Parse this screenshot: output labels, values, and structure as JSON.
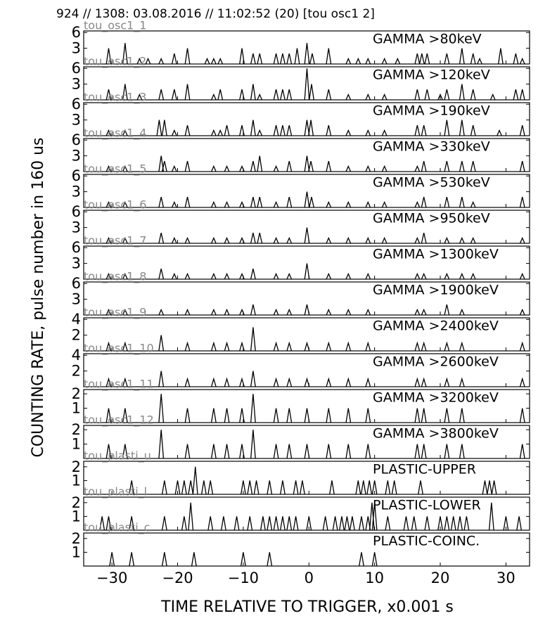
{
  "chart_data": {
    "type": "spike",
    "title": "924 // 1308:   03.08.2016 // 11:02:52 (20)  [tou osc1 2]",
    "x_label": "TIME RELATIVE TO TRIGGER,   x0.001 s",
    "y_label": "COUNTING RATE,   pulse number in 160 us",
    "xlim": [
      -34.3,
      33.6
    ],
    "xticks": [
      {
        "value": -30,
        "label": "−30"
      },
      {
        "value": -20,
        "label": "−20"
      },
      {
        "value": -10,
        "label": "−10"
      },
      0,
      10,
      20,
      30
    ],
    "color": "#000000",
    "panels": [
      {
        "name": "tou_osc1_1",
        "label": "GAMMA >80keV",
        "ylim": [
          0,
          6.3
        ],
        "yticks": [
          3,
          6
        ],
        "x": [
          -30.5,
          -28,
          -25.8,
          -24.5,
          -22.5,
          -20.5,
          -18.5,
          -15.5,
          -14.5,
          -13.5,
          -10.2,
          -8.5,
          -7.5,
          -5,
          -4,
          -3,
          -1.8,
          -0.3,
          0.5,
          3,
          6,
          7.5,
          9,
          11.5,
          13.5,
          16.5,
          17.2,
          18,
          21,
          23.3,
          25,
          26,
          29.2,
          31.5,
          32.5
        ],
        "values": [
          3,
          4,
          1,
          1,
          1,
          2,
          3,
          1,
          1,
          1,
          3,
          2,
          2,
          2,
          2,
          2,
          3,
          4,
          2,
          3,
          1,
          1,
          1,
          1,
          1,
          2,
          2,
          2,
          2,
          3,
          2,
          1,
          3,
          2,
          1
        ]
      },
      {
        "name": "tou_osc1_2",
        "label": "GAMMA >120keV",
        "ylim": [
          0,
          6.3
        ],
        "yticks": [
          3,
          6
        ],
        "x": [
          -30.5,
          -28,
          -25.8,
          -22.5,
          -20.5,
          -18.5,
          -14.5,
          -13.5,
          -10.2,
          -8.5,
          -7.5,
          -5,
          -4,
          -3,
          -0.3,
          0.4,
          3,
          6,
          9,
          11.5,
          16.5,
          18,
          20,
          21,
          23.3,
          25,
          28,
          31.5,
          32.5
        ],
        "values": [
          2,
          3,
          1,
          2,
          2,
          3,
          1,
          2,
          2,
          3,
          1,
          2,
          2,
          2,
          6,
          3,
          2,
          1,
          1,
          1,
          2,
          2,
          1,
          2,
          3,
          2,
          1,
          2,
          2
        ]
      },
      {
        "name": "tou_osc1_3",
        "label": "GAMMA >190keV",
        "ylim": [
          0,
          6.3
        ],
        "yticks": [
          3,
          6
        ],
        "x": [
          -30.5,
          -28,
          -22.8,
          -22,
          -20.5,
          -18.5,
          -14.5,
          -13.5,
          -12.5,
          -10.2,
          -8.5,
          -7.5,
          -5,
          -4,
          -3,
          -0.3,
          0.3,
          3,
          6,
          9,
          11.5,
          16.5,
          17.5,
          21,
          23.3,
          25,
          29,
          32.5
        ],
        "values": [
          1,
          1,
          3,
          3,
          1,
          2,
          1,
          1,
          2,
          2,
          3,
          1,
          2,
          2,
          2,
          3,
          3,
          2,
          1,
          1,
          1,
          2,
          2,
          3,
          3,
          2,
          1,
          2
        ]
      },
      {
        "name": "tou_osc1_4",
        "label": "GAMMA >330keV",
        "ylim": [
          0,
          6.3
        ],
        "yticks": [
          3,
          6
        ],
        "x": [
          -30.5,
          -28,
          -22.5,
          -22,
          -20.5,
          -18.5,
          -14.5,
          -12.5,
          -10.2,
          -8.5,
          -7.5,
          -5,
          -3,
          -0.3,
          0.3,
          3,
          6,
          9,
          11.5,
          16.5,
          17.5,
          21,
          23.3,
          25,
          32.5
        ],
        "values": [
          1,
          1,
          3,
          2,
          1,
          2,
          1,
          1,
          1,
          2,
          3,
          1,
          2,
          3,
          2,
          2,
          1,
          1,
          1,
          1,
          2,
          2,
          2,
          2,
          2
        ]
      },
      {
        "name": "tou_osc1_5",
        "label": "GAMMA >530keV",
        "ylim": [
          0,
          6.3
        ],
        "yticks": [
          3,
          6
        ],
        "x": [
          -30.5,
          -28,
          -22.5,
          -20.5,
          -18.5,
          -14.5,
          -12.5,
          -10.2,
          -8.5,
          -7.5,
          -5,
          -3,
          -0.3,
          0.4,
          3,
          6,
          9,
          11.5,
          16.5,
          17.5,
          21,
          23.3,
          25,
          32.5
        ],
        "values": [
          1,
          1,
          2,
          1,
          2,
          1,
          1,
          1,
          2,
          2,
          1,
          2,
          3,
          2,
          1,
          1,
          1,
          1,
          1,
          2,
          2,
          2,
          1,
          2
        ]
      },
      {
        "name": "tou_osc1_6",
        "label": "GAMMA >950keV",
        "ylim": [
          0,
          6.3
        ],
        "yticks": [
          3,
          6
        ],
        "x": [
          -30.5,
          -28,
          -22.5,
          -20.5,
          -18.5,
          -14.5,
          -12.5,
          -10.2,
          -8.5,
          -7.5,
          -5,
          -3,
          -0.3,
          3,
          6,
          9,
          11.5,
          16.5,
          17.5,
          21,
          23.3,
          25,
          32.5
        ],
        "values": [
          1,
          1,
          2,
          1,
          1,
          1,
          1,
          1,
          2,
          2,
          1,
          1,
          3,
          1,
          1,
          1,
          1,
          1,
          2,
          1,
          1,
          1,
          1
        ]
      },
      {
        "name": "tou_osc1_7",
        "label": "GAMMA >1300keV",
        "ylim": [
          0,
          6.3
        ],
        "yticks": [
          3,
          6
        ],
        "x": [
          -30.5,
          -28,
          -22.5,
          -20.5,
          -18.5,
          -14.5,
          -12.5,
          -10.2,
          -8.5,
          -5,
          -3,
          -0.3,
          3,
          6,
          9,
          16.5,
          17.5,
          21,
          23.3,
          25,
          32.5
        ],
        "values": [
          1,
          1,
          2,
          1,
          1,
          1,
          1,
          1,
          2,
          1,
          1,
          3,
          1,
          1,
          1,
          1,
          1,
          1,
          1,
          1,
          1
        ]
      },
      {
        "name": "tou_osc1_8",
        "label": "GAMMA >1900keV",
        "ylim": [
          0,
          6.3
        ],
        "yticks": [
          3,
          6
        ],
        "x": [
          -30.5,
          -28,
          -22.5,
          -18.5,
          -14.5,
          -12.5,
          -10.2,
          -8.5,
          -5,
          -3,
          -0.3,
          3,
          6,
          9,
          16.5,
          17.5,
          21,
          23.3,
          32.5
        ],
        "values": [
          1,
          1,
          1,
          1,
          1,
          1,
          1,
          2,
          1,
          1,
          2,
          1,
          1,
          1,
          1,
          1,
          2,
          1,
          1
        ]
      },
      {
        "name": "tou_osc1_9",
        "label": "GAMMA >2400keV",
        "ylim": [
          0,
          4.2
        ],
        "yticks": [
          2,
          4
        ],
        "x": [
          -30.5,
          -28,
          -22.5,
          -18.5,
          -14.5,
          -12.5,
          -10.2,
          -8.5,
          -5,
          -3,
          -0.3,
          3,
          6,
          9,
          16.5,
          17.5,
          21,
          23.3,
          32.5
        ],
        "values": [
          1,
          1,
          2,
          1,
          1,
          1,
          1,
          3,
          1,
          1,
          1,
          1,
          1,
          1,
          1,
          1,
          1,
          1,
          1
        ]
      },
      {
        "name": "tou_osc1_10",
        "label": "GAMMA >2600keV",
        "ylim": [
          0,
          4.2
        ],
        "yticks": [
          2,
          4
        ],
        "x": [
          -30.5,
          -28,
          -22.5,
          -18.5,
          -14.5,
          -12.5,
          -10.2,
          -8.5,
          -5,
          -3,
          -0.3,
          3,
          6,
          9,
          16.5,
          17.5,
          21,
          23.3,
          32.5
        ],
        "values": [
          1,
          1,
          2,
          1,
          1,
          1,
          1,
          2,
          1,
          1,
          1,
          1,
          1,
          1,
          1,
          1,
          1,
          1,
          1
        ]
      },
      {
        "name": "tou_osc1_11",
        "label": "GAMMA >3200keV",
        "ylim": [
          0,
          2.3
        ],
        "yticks": [
          1,
          2
        ],
        "x": [
          -30.5,
          -28,
          -22.5,
          -18.5,
          -14.5,
          -12.5,
          -10.2,
          -8.5,
          -5,
          -3,
          -0.3,
          3,
          6,
          9,
          16.5,
          17.5,
          21,
          23.3,
          32.5
        ],
        "values": [
          1,
          1,
          2,
          1,
          1,
          1,
          1,
          2,
          1,
          1,
          1,
          1,
          1,
          1,
          1,
          1,
          1,
          1,
          1
        ]
      },
      {
        "name": "tou_osc1_12",
        "label": "GAMMA >3800keV",
        "ylim": [
          0,
          2.3
        ],
        "yticks": [
          1,
          2
        ],
        "x": [
          -30.5,
          -28,
          -22.5,
          -18.5,
          -14.5,
          -12.5,
          -10.2,
          -8.5,
          -5,
          -3,
          -0.3,
          3,
          6,
          9,
          16.5,
          17.5,
          21,
          23.3,
          32.5
        ],
        "values": [
          1,
          1,
          2,
          1,
          1,
          1,
          1,
          2,
          1,
          1,
          1,
          1,
          1,
          1,
          1,
          1,
          1,
          1,
          1
        ]
      },
      {
        "name": "tou_plasti_u",
        "label": "PLASTIC-UPPER",
        "ylim": [
          0,
          2.4
        ],
        "yticks": [
          1,
          2
        ],
        "x": [
          -27,
          -22,
          -20,
          -19,
          -18,
          -17.3,
          -16,
          -15,
          -10,
          -9,
          -8,
          -6,
          -4,
          -2,
          -1,
          3.5,
          7.5,
          8.3,
          9.2,
          10,
          12,
          13,
          17,
          26.8,
          27.5,
          28.2
        ],
        "values": [
          1,
          1,
          1,
          1,
          1,
          2,
          1,
          1,
          1,
          1,
          1,
          1,
          1,
          1,
          1,
          1,
          1,
          1,
          1,
          1,
          1,
          1,
          1,
          1,
          1,
          1
        ]
      },
      {
        "name": "tou_plasti_l",
        "label": "PLASTIC-LOWER",
        "ylim": [
          0,
          2.4
        ],
        "yticks": [
          1,
          2
        ],
        "x": [
          -31.5,
          -30.5,
          -27,
          -22,
          -19,
          -18,
          -15,
          -13,
          -11,
          -9,
          -7,
          -6,
          -5,
          -4,
          -3,
          -2,
          0,
          2.5,
          4,
          5,
          5.8,
          6.6,
          8,
          9,
          9.6,
          10,
          12,
          14.8,
          16,
          18,
          20,
          21,
          22,
          23,
          24,
          27.8,
          30,
          32
        ],
        "values": [
          1,
          1,
          1,
          1,
          1,
          2,
          1,
          1,
          1,
          1,
          1,
          1,
          1,
          1,
          1,
          1,
          1,
          1,
          1,
          1,
          1,
          1,
          1,
          1,
          2,
          2,
          1,
          1,
          1,
          1,
          1,
          1,
          1,
          1,
          1,
          2,
          1,
          1
        ]
      },
      {
        "name": "tou_plasti_c",
        "label": "PLASTIC-COINC.",
        "ylim": [
          0,
          2.4
        ],
        "yticks": [
          1,
          2
        ],
        "x": [
          -30,
          -27,
          -22,
          -17.5,
          -10,
          -6,
          8,
          10
        ],
        "values": [
          1,
          1,
          1,
          1,
          1,
          1,
          1,
          1
        ]
      }
    ]
  }
}
